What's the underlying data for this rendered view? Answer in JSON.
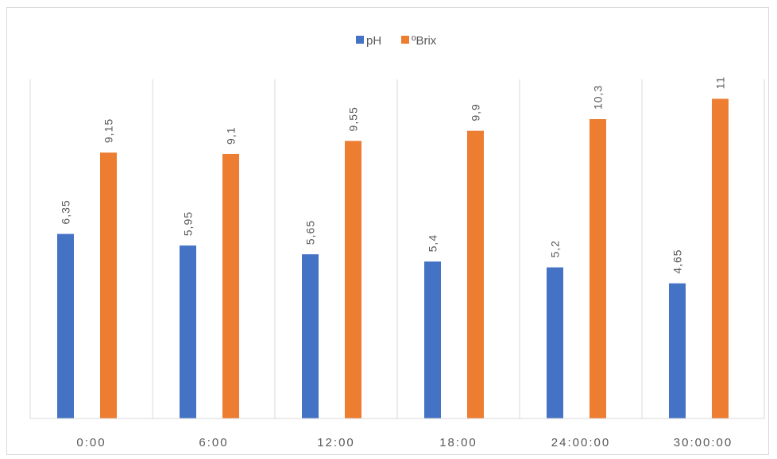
{
  "chart_data": {
    "type": "bar",
    "title": "",
    "xlabel": "",
    "ylabel": "",
    "categories": [
      "0:00",
      "6:00",
      "12:00",
      "18:00",
      "24:00:00",
      "30:00:00"
    ],
    "series": [
      {
        "name": "pH",
        "color": "#4472c4",
        "values": [
          6.35,
          5.95,
          5.65,
          5.4,
          5.2,
          4.65
        ],
        "labels": [
          "6,35",
          "5,95",
          "5,65",
          "5,4",
          "5,2",
          "4,65"
        ]
      },
      {
        "name": "ºBrix",
        "color": "#ed7d31",
        "values": [
          9.15,
          9.1,
          9.55,
          9.9,
          10.3,
          11
        ],
        "labels": [
          "9,15",
          "9,1",
          "9,55",
          "9,9",
          "10,3",
          "11"
        ]
      }
    ],
    "ylim": [
      0,
      13.5
    ],
    "grid": "vertical category separators",
    "legend": "top-center",
    "data_labels": "rotated, above bars",
    "colors": {
      "axis": "#d9d9d9",
      "text": "#595959"
    }
  }
}
